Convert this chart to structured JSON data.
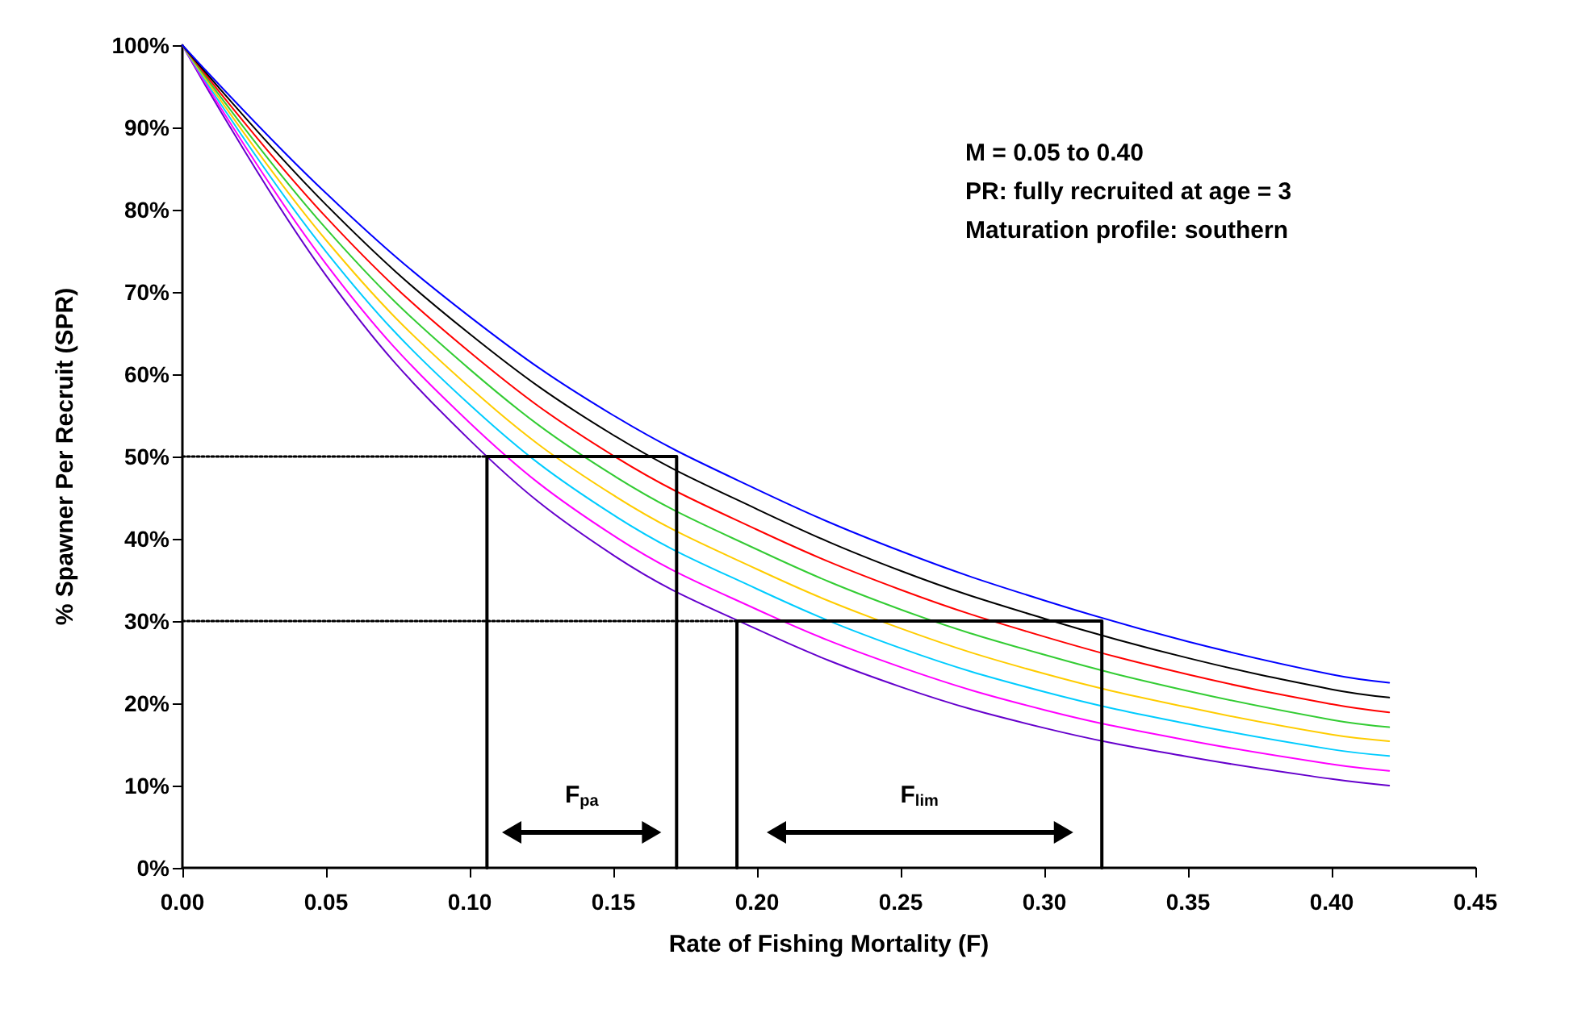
{
  "chart_data": {
    "type": "line",
    "xlabel": "Rate of Fishing Mortality (F)",
    "ylabel": "% Spawner Per Recruit (SPR)",
    "x": [
      0,
      0.05,
      0.1,
      0.15,
      0.2,
      0.25,
      0.3,
      0.35,
      0.4,
      0.42
    ],
    "series": [
      {
        "color": "#6600cc",
        "values": [
          100,
          72,
          52,
          38,
          29,
          22,
          17,
          13.5,
          10.8,
          10
        ]
      },
      {
        "color": "#ff00ff",
        "values": [
          100,
          73.4,
          54.1,
          40.4,
          31.4,
          24.4,
          19.2,
          15.5,
          12.6,
          11.8
        ]
      },
      {
        "color": "#00ccff",
        "values": [
          100,
          74.9,
          56.3,
          42.9,
          33.9,
          26.7,
          21.4,
          17.5,
          14.4,
          13.6
        ]
      },
      {
        "color": "#ffcc00",
        "values": [
          100,
          76.3,
          58.4,
          45.3,
          36.3,
          29.1,
          23.6,
          19.5,
          16.2,
          15.4
        ]
      },
      {
        "color": "#33cc33",
        "values": [
          100,
          77.7,
          60.6,
          47.7,
          38.7,
          31.4,
          25.9,
          21.5,
          18,
          17.1
        ]
      },
      {
        "color": "#ff0000",
        "values": [
          100,
          79.1,
          62.7,
          50.1,
          41.1,
          33.8,
          28.1,
          23.5,
          19.9,
          18.9
        ]
      },
      {
        "color": "#000000",
        "values": [
          100,
          80.6,
          64.9,
          52.6,
          43.6,
          36.1,
          30.3,
          25.5,
          21.7,
          20.7
        ]
      },
      {
        "color": "#0000ff",
        "values": [
          100,
          82,
          67,
          55,
          46,
          38.5,
          32.5,
          27.5,
          23.5,
          22.5
        ]
      },
      {
        "color": "#000000",
        "line_style": "dotted",
        "x": [
          0,
          0.106
        ],
        "values": [
          50,
          50
        ]
      },
      {
        "color": "#000000",
        "line_style": "dotted",
        "x": [
          0,
          0.193
        ],
        "values": [
          30,
          30
        ]
      },
      {
        "color": "#000000",
        "x": [
          0.106,
          0.106,
          0.172,
          0.172
        ],
        "values": [
          0,
          50,
          50,
          0
        ]
      },
      {
        "color": "#000000",
        "x": [
          0.193,
          0.193,
          0.32,
          0.32
        ],
        "values": [
          0,
          30,
          30,
          0
        ]
      }
    ],
    "xlim": [
      0,
      0.45
    ],
    "xticks": [
      {
        "value": 0,
        "label": "0.00"
      },
      {
        "value": 0.05,
        "label": "0.05"
      },
      {
        "value": 0.1,
        "label": "0.10"
      },
      {
        "value": 0.15,
        "label": "0.15"
      },
      {
        "value": 0.2,
        "label": "0.20"
      },
      {
        "value": 0.25,
        "label": "0.25"
      },
      {
        "value": 0.3,
        "label": "0.30"
      },
      {
        "value": 0.35,
        "label": "0.35"
      },
      {
        "value": 0.4,
        "label": "0.40"
      },
      {
        "value": 0.45,
        "label": "0.45"
      }
    ],
    "ylim": [
      0,
      100
    ],
    "yticks": [
      {
        "value": 0,
        "label": "0%"
      },
      {
        "value": 10,
        "label": "10%"
      },
      {
        "value": 20,
        "label": "20%"
      },
      {
        "value": 30,
        "label": "30%"
      },
      {
        "value": 40,
        "label": "40%"
      },
      {
        "value": 50,
        "label": "50%"
      },
      {
        "value": 60,
        "label": "60%"
      },
      {
        "value": 70,
        "label": "70%"
      },
      {
        "value": 80,
        "label": "80%"
      },
      {
        "value": 90,
        "label": "90%"
      },
      {
        "value": 100,
        "label": "100%"
      }
    ],
    "annotations": [
      "M = 0.05 to 0.40",
      "PR: fully recruited at age = 3",
      "Maturation profile: southern",
      "F$_{pa}$",
      "F$_{lim}$"
    ],
    "grid": false,
    "marker": "none",
    "line_style": "solid"
  }
}
